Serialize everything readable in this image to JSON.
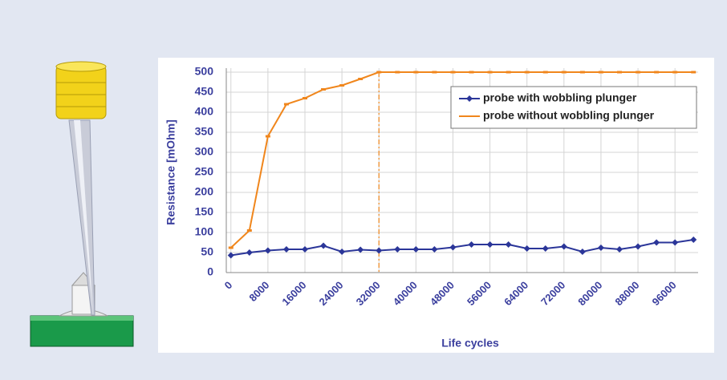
{
  "chart_data": {
    "type": "line",
    "x": [
      0,
      4000,
      8000,
      12000,
      16000,
      20000,
      24000,
      28000,
      32000,
      36000,
      40000,
      44000,
      48000,
      52000,
      56000,
      60000,
      64000,
      68000,
      72000,
      76000,
      80000,
      84000,
      88000,
      92000,
      96000,
      100000
    ],
    "series": [
      {
        "name": "probe with wobbling plunger",
        "color": "#2b3699",
        "values": [
          43,
          50,
          55,
          58,
          58,
          67,
          52,
          57,
          55,
          58,
          58,
          58,
          63,
          70,
          70,
          70,
          60,
          60,
          65,
          52,
          62,
          58,
          65,
          75,
          75,
          82
        ]
      },
      {
        "name": "probe without wobbling plunger",
        "color": "#f0861c",
        "values": [
          62,
          105,
          340,
          420,
          435,
          457,
          467,
          483,
          500,
          500,
          500,
          500,
          500,
          500,
          500,
          500,
          500,
          500,
          500,
          500,
          500,
          500,
          500,
          500,
          500,
          500
        ]
      }
    ],
    "x_label": "Life cycles",
    "y_label": "Resistance [mOhm]",
    "xlim": [
      -1000,
      101000
    ],
    "xticks": [
      0,
      8000,
      16000,
      24000,
      32000,
      40000,
      48000,
      56000,
      64000,
      72000,
      80000,
      88000,
      96000
    ],
    "ylim": [
      0,
      500
    ],
    "yticks": [
      0,
      50,
      100,
      150,
      200,
      250,
      300,
      350,
      400,
      450,
      500
    ],
    "vline_x": 32000,
    "grid": true,
    "legend": "upper right"
  }
}
